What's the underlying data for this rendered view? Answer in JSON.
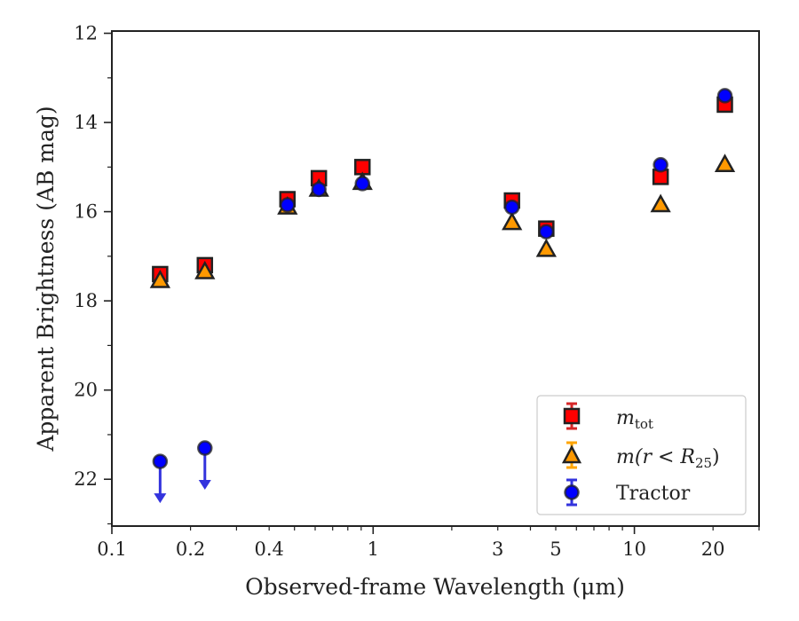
{
  "chart_data": {
    "type": "scatter",
    "xlabel": "Observed-frame Wavelength (μm)",
    "ylabel": "Apparent Brightness (AB mag)",
    "xscale": "log",
    "xlim": [
      0.1,
      30
    ],
    "ylim": [
      23.05,
      11.95
    ],
    "y_inverted": true,
    "x_tick_labels": [
      {
        "value": 0.1,
        "label": "0.1"
      },
      {
        "value": 0.2,
        "label": "0.2"
      },
      {
        "value": 0.4,
        "label": "0.4"
      },
      {
        "value": 1,
        "label": "1"
      },
      {
        "value": 3,
        "label": "3"
      },
      {
        "value": 5,
        "label": "5"
      },
      {
        "value": 10,
        "label": "10"
      },
      {
        "value": 20,
        "label": "20"
      }
    ],
    "y_ticks": [
      12,
      14,
      16,
      18,
      20,
      22
    ],
    "legend_position": "lower-right",
    "grid": false,
    "series": [
      {
        "name": "m_tot",
        "marker": "square",
        "color": "#ff0000",
        "errorbar_color": "#d62728",
        "x": [
          0.153,
          0.227,
          0.47,
          0.62,
          0.91,
          3.4,
          4.6,
          12.6,
          22.2
        ],
        "y": [
          17.4,
          17.2,
          15.72,
          15.25,
          15.0,
          15.75,
          16.38,
          15.22,
          13.6
        ]
      },
      {
        "name": "m(r < R25)",
        "marker": "triangle",
        "color": "#ff9900",
        "errorbar_color": "#ffa500",
        "x": [
          0.153,
          0.227,
          0.47,
          0.62,
          0.91,
          3.4,
          4.6,
          12.6,
          22.2
        ],
        "y": [
          17.55,
          17.35,
          15.9,
          15.5,
          15.35,
          16.25,
          16.85,
          15.85,
          14.95
        ]
      },
      {
        "name": "Tractor",
        "marker": "circle",
        "color": "#0000ff",
        "errorbar_color": "#3333dd",
        "x": [
          0.153,
          0.227,
          0.47,
          0.62,
          0.91,
          3.4,
          4.6,
          12.6,
          22.2
        ],
        "y": [
          21.6,
          21.3,
          15.85,
          15.5,
          15.37,
          15.9,
          16.45,
          14.95,
          13.4
        ],
        "upper_limit": [
          true,
          true,
          false,
          false,
          false,
          false,
          false,
          false,
          false
        ]
      }
    ]
  },
  "legend": {
    "m_tot": {
      "base": "m",
      "sub": "tot"
    },
    "m_r25": {
      "prefix": "m(r < R",
      "sub": "25",
      "suffix": ")"
    },
    "tractor": "Tractor"
  },
  "colors": {
    "axis": "#222222",
    "marker_edge": "#222222",
    "legend_border": "#cccccc",
    "upper_limit_arrow": "#3333dd"
  }
}
